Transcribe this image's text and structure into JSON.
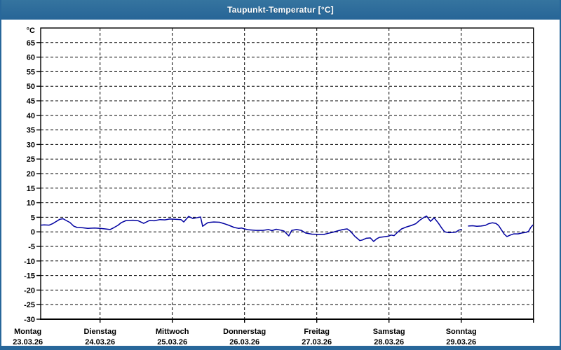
{
  "window": {
    "title": "Taupunkt-Temperatur [°C]"
  },
  "colors": {
    "titlebar": "#2B6C9D",
    "window_border": "#28679A",
    "plot_background": "#FFFFFF",
    "frame": "#000000",
    "grid": "#000000",
    "label_text": "#000000",
    "series_line": "#0000A0"
  },
  "chart_data": {
    "type": "line",
    "title": "Taupunkt-Temperatur [°C]",
    "grid": "dashed",
    "legend": "none",
    "y_axis": {
      "unit_label": "°C",
      "min": -30,
      "max": 70,
      "tick_step": 5,
      "tick_values": [
        65,
        60,
        55,
        50,
        45,
        40,
        35,
        30,
        25,
        20,
        15,
        10,
        5,
        0,
        -5,
        -10,
        -15,
        -20,
        -25,
        -30
      ]
    },
    "x_axis": {
      "unit": "hours_since_monday_midnight",
      "range_hours": [
        0,
        168
      ],
      "days": [
        {
          "name": "Montag",
          "date": "23.03.26"
        },
        {
          "name": "Dienstag",
          "date": "24.03.26"
        },
        {
          "name": "Mittwoch",
          "date": "25.03.26"
        },
        {
          "name": "Donnerstag",
          "date": "26.03.26"
        },
        {
          "name": "Freitag",
          "date": "27.03.26"
        },
        {
          "name": "Samstag",
          "date": "28.03.26"
        },
        {
          "name": "Sonntag",
          "date": "29.03.26"
        }
      ]
    },
    "series": [
      {
        "name": "Taupunkt-Temperatur",
        "color": "#0000A0",
        "segments": [
          [
            [
              4.3,
              2.3
            ],
            [
              5.4,
              2.4
            ],
            [
              7.1,
              2.3
            ],
            [
              8.2,
              2.8
            ],
            [
              10.6,
              4.3
            ],
            [
              11.7,
              4.5
            ],
            [
              12.9,
              3.8
            ],
            [
              14,
              3.2
            ],
            [
              15.2,
              2.0
            ],
            [
              16.4,
              1.5
            ],
            [
              18.2,
              1.4
            ],
            [
              19.9,
              1.2
            ],
            [
              22.2,
              1.3
            ],
            [
              24,
              1.2
            ],
            [
              25.7,
              1.0
            ],
            [
              27.3,
              0.8
            ],
            [
              28.5,
              1.4
            ],
            [
              29.9,
              2.2
            ],
            [
              31.1,
              3.2
            ],
            [
              32.7,
              3.9
            ],
            [
              35,
              4.0
            ],
            [
              36.7,
              3.8
            ],
            [
              38.5,
              2.9
            ],
            [
              40.4,
              3.9
            ],
            [
              42,
              3.8
            ],
            [
              43.9,
              4.2
            ],
            [
              45.5,
              4.1
            ],
            [
              47.1,
              4.4
            ],
            [
              49,
              4.3
            ],
            [
              50.9,
              4.2
            ],
            [
              51.8,
              3.4
            ],
            [
              53.4,
              5.3
            ],
            [
              54.8,
              4.6
            ],
            [
              56.4,
              4.9
            ],
            [
              57.4,
              5.1
            ],
            [
              58.1,
              1.9
            ],
            [
              59,
              2.6
            ],
            [
              59.9,
              3.2
            ],
            [
              61.8,
              3.4
            ],
            [
              63.7,
              3.3
            ],
            [
              65.3,
              2.8
            ],
            [
              66.9,
              2.2
            ],
            [
              68.6,
              1.5
            ],
            [
              70,
              1.2
            ],
            [
              71.1,
              1.3
            ],
            [
              72,
              1.0
            ],
            [
              73.4,
              0.7
            ],
            [
              75.8,
              0.5
            ],
            [
              78.1,
              0.5
            ],
            [
              80,
              0.8
            ],
            [
              81.1,
              0.4
            ],
            [
              82.5,
              0.9
            ],
            [
              83.9,
              0.6
            ],
            [
              85.1,
              0.3
            ],
            [
              86.7,
              -1.4
            ],
            [
              87.7,
              0.5
            ],
            [
              89.3,
              0.8
            ],
            [
              90.9,
              0.5
            ],
            [
              92.3,
              -0.4
            ],
            [
              94.4,
              -0.8
            ],
            [
              96.7,
              -0.9
            ],
            [
              98.4,
              -0.9
            ],
            [
              99.8,
              -0.5
            ],
            [
              101.2,
              -0.2
            ],
            [
              102.8,
              0.3
            ],
            [
              104.7,
              0.8
            ],
            [
              106.1,
              1.0
            ],
            [
              107.2,
              0.2
            ],
            [
              108.6,
              -1.5
            ],
            [
              110.3,
              -3.0
            ],
            [
              111.2,
              -2.8
            ],
            [
              112.4,
              -2.2
            ],
            [
              113.8,
              -2.1
            ],
            [
              114.9,
              -3.3
            ],
            [
              115.9,
              -2.4
            ],
            [
              116.8,
              -1.9
            ],
            [
              118.4,
              -1.7
            ],
            [
              119.8,
              -1.5
            ],
            [
              120.7,
              -1.1
            ],
            [
              121.7,
              -1.3
            ],
            [
              122.8,
              -0.2
            ],
            [
              124.2,
              1.0
            ],
            [
              125.9,
              1.7
            ],
            [
              127.5,
              2.2
            ],
            [
              128.9,
              2.8
            ],
            [
              130.5,
              4.2
            ],
            [
              131.7,
              5.0
            ],
            [
              132.5,
              5.4
            ],
            [
              133.8,
              3.6
            ],
            [
              135,
              4.8
            ],
            [
              136.4,
              3.0
            ],
            [
              137.6,
              1.2
            ],
            [
              138.5,
              0.0
            ],
            [
              139.9,
              -0.3
            ],
            [
              141.3,
              -0.2
            ],
            [
              142.2,
              -0.1
            ],
            [
              143.2,
              0.6
            ],
            [
              144.1,
              0.8
            ]
          ],
          [
            [
              146.4,
              2.0
            ],
            [
              147.8,
              2.1
            ],
            [
              149.2,
              1.9
            ],
            [
              150.6,
              2.0
            ],
            [
              152,
              2.2
            ],
            [
              153.1,
              2.8
            ],
            [
              154.3,
              3.1
            ],
            [
              155.5,
              2.9
            ],
            [
              156.4,
              2.2
            ],
            [
              157.3,
              0.8
            ],
            [
              158.3,
              -0.8
            ],
            [
              159.2,
              -1.6
            ],
            [
              160.3,
              -1.1
            ],
            [
              161.5,
              -0.7
            ],
            [
              162.9,
              -0.7
            ],
            [
              164.1,
              -0.4
            ],
            [
              165.5,
              -0.2
            ],
            [
              166.4,
              0.2
            ],
            [
              167.1,
              1.5
            ],
            [
              167.8,
              2.3
            ]
          ]
        ]
      }
    ]
  }
}
